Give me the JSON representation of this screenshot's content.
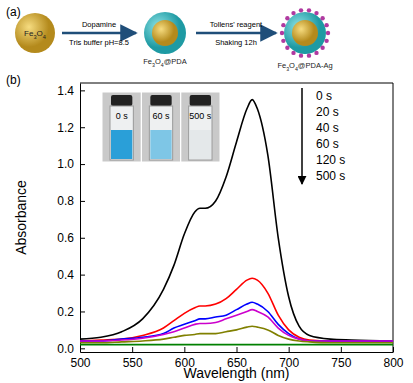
{
  "panel_a": {
    "label": "(a)",
    "nodes": [
      {
        "label": "Fe3O4"
      },
      {
        "label": "Fe3O4@PDA"
      },
      {
        "label": "Fe3O4@PDA-Ag"
      }
    ],
    "steps": [
      {
        "above": "Dopamine",
        "below": "Tris buffer pH=8.5"
      },
      {
        "above": "Tollens' reagent",
        "below": "Shaking 12h"
      }
    ]
  },
  "inset": {
    "labels": [
      "0 s",
      "60 s",
      "500 s"
    ]
  },
  "chart_data": {
    "type": "line",
    "title": "(b)",
    "x_label": "Wavelength (nm)",
    "y_label": "Absorbance",
    "x": [
      500,
      520,
      540,
      560,
      580,
      590,
      600,
      610,
      615,
      620,
      630,
      640,
      650,
      660,
      665,
      670,
      680,
      690,
      700,
      710,
      720,
      740,
      760,
      800
    ],
    "series": [
      {
        "name": "0 s",
        "color": "#000000",
        "values": [
          0.05,
          0.06,
          0.09,
          0.16,
          0.32,
          0.45,
          0.62,
          0.74,
          0.76,
          0.76,
          0.8,
          0.93,
          1.12,
          1.3,
          1.35,
          1.3,
          1.05,
          0.6,
          0.28,
          0.12,
          0.07,
          0.05,
          0.045,
          0.04
        ]
      },
      {
        "name": "20 s",
        "color": "#ff0000",
        "values": [
          0.04,
          0.045,
          0.05,
          0.07,
          0.11,
          0.15,
          0.19,
          0.22,
          0.23,
          0.23,
          0.24,
          0.27,
          0.32,
          0.37,
          0.38,
          0.37,
          0.3,
          0.18,
          0.1,
          0.06,
          0.045,
          0.04,
          0.04,
          0.04
        ]
      },
      {
        "name": "40 s",
        "color": "#0000ff",
        "values": [
          0.04,
          0.04,
          0.05,
          0.06,
          0.08,
          0.11,
          0.13,
          0.15,
          0.16,
          0.16,
          0.17,
          0.18,
          0.21,
          0.24,
          0.25,
          0.24,
          0.2,
          0.13,
          0.08,
          0.05,
          0.04,
          0.04,
          0.04,
          0.04
        ]
      },
      {
        "name": "60 s",
        "color": "#cc00cc",
        "values": [
          0.04,
          0.04,
          0.045,
          0.055,
          0.075,
          0.09,
          0.11,
          0.13,
          0.135,
          0.135,
          0.14,
          0.16,
          0.18,
          0.2,
          0.21,
          0.2,
          0.17,
          0.11,
          0.07,
          0.05,
          0.04,
          0.04,
          0.04,
          0.04
        ]
      },
      {
        "name": "120 s",
        "color": "#808000",
        "values": [
          0.03,
          0.03,
          0.035,
          0.04,
          0.05,
          0.06,
          0.07,
          0.075,
          0.08,
          0.08,
          0.08,
          0.09,
          0.1,
          0.115,
          0.12,
          0.115,
          0.1,
          0.07,
          0.05,
          0.04,
          0.035,
          0.03,
          0.03,
          0.03
        ]
      },
      {
        "name": "500 s",
        "color": "#008000",
        "values": [
          0.02,
          0.02,
          0.02,
          0.02,
          0.02,
          0.02,
          0.02,
          0.02,
          0.02,
          0.02,
          0.02,
          0.02,
          0.02,
          0.02,
          0.02,
          0.02,
          0.02,
          0.02,
          0.02,
          0.02,
          0.02,
          0.02,
          0.02,
          0.02
        ]
      }
    ],
    "xlim": [
      500,
      800
    ],
    "xticks": [
      500,
      550,
      600,
      650,
      700,
      750,
      800
    ],
    "ylim": [
      -0.02,
      1.44
    ],
    "yticks": [
      {
        "value": 0,
        "label": "0.0"
      },
      {
        "value": 0.2,
        "label": "0.2"
      },
      {
        "value": 0.4,
        "label": "0.4"
      },
      {
        "value": 0.6,
        "label": "0.6"
      },
      {
        "value": 0.8,
        "label": "0.8"
      },
      {
        "value": 1,
        "label": "1.0"
      },
      {
        "value": 1.2,
        "label": "1.2"
      },
      {
        "value": 1.4,
        "label": "1.4"
      }
    ],
    "grid": false,
    "legend": "upper right"
  }
}
